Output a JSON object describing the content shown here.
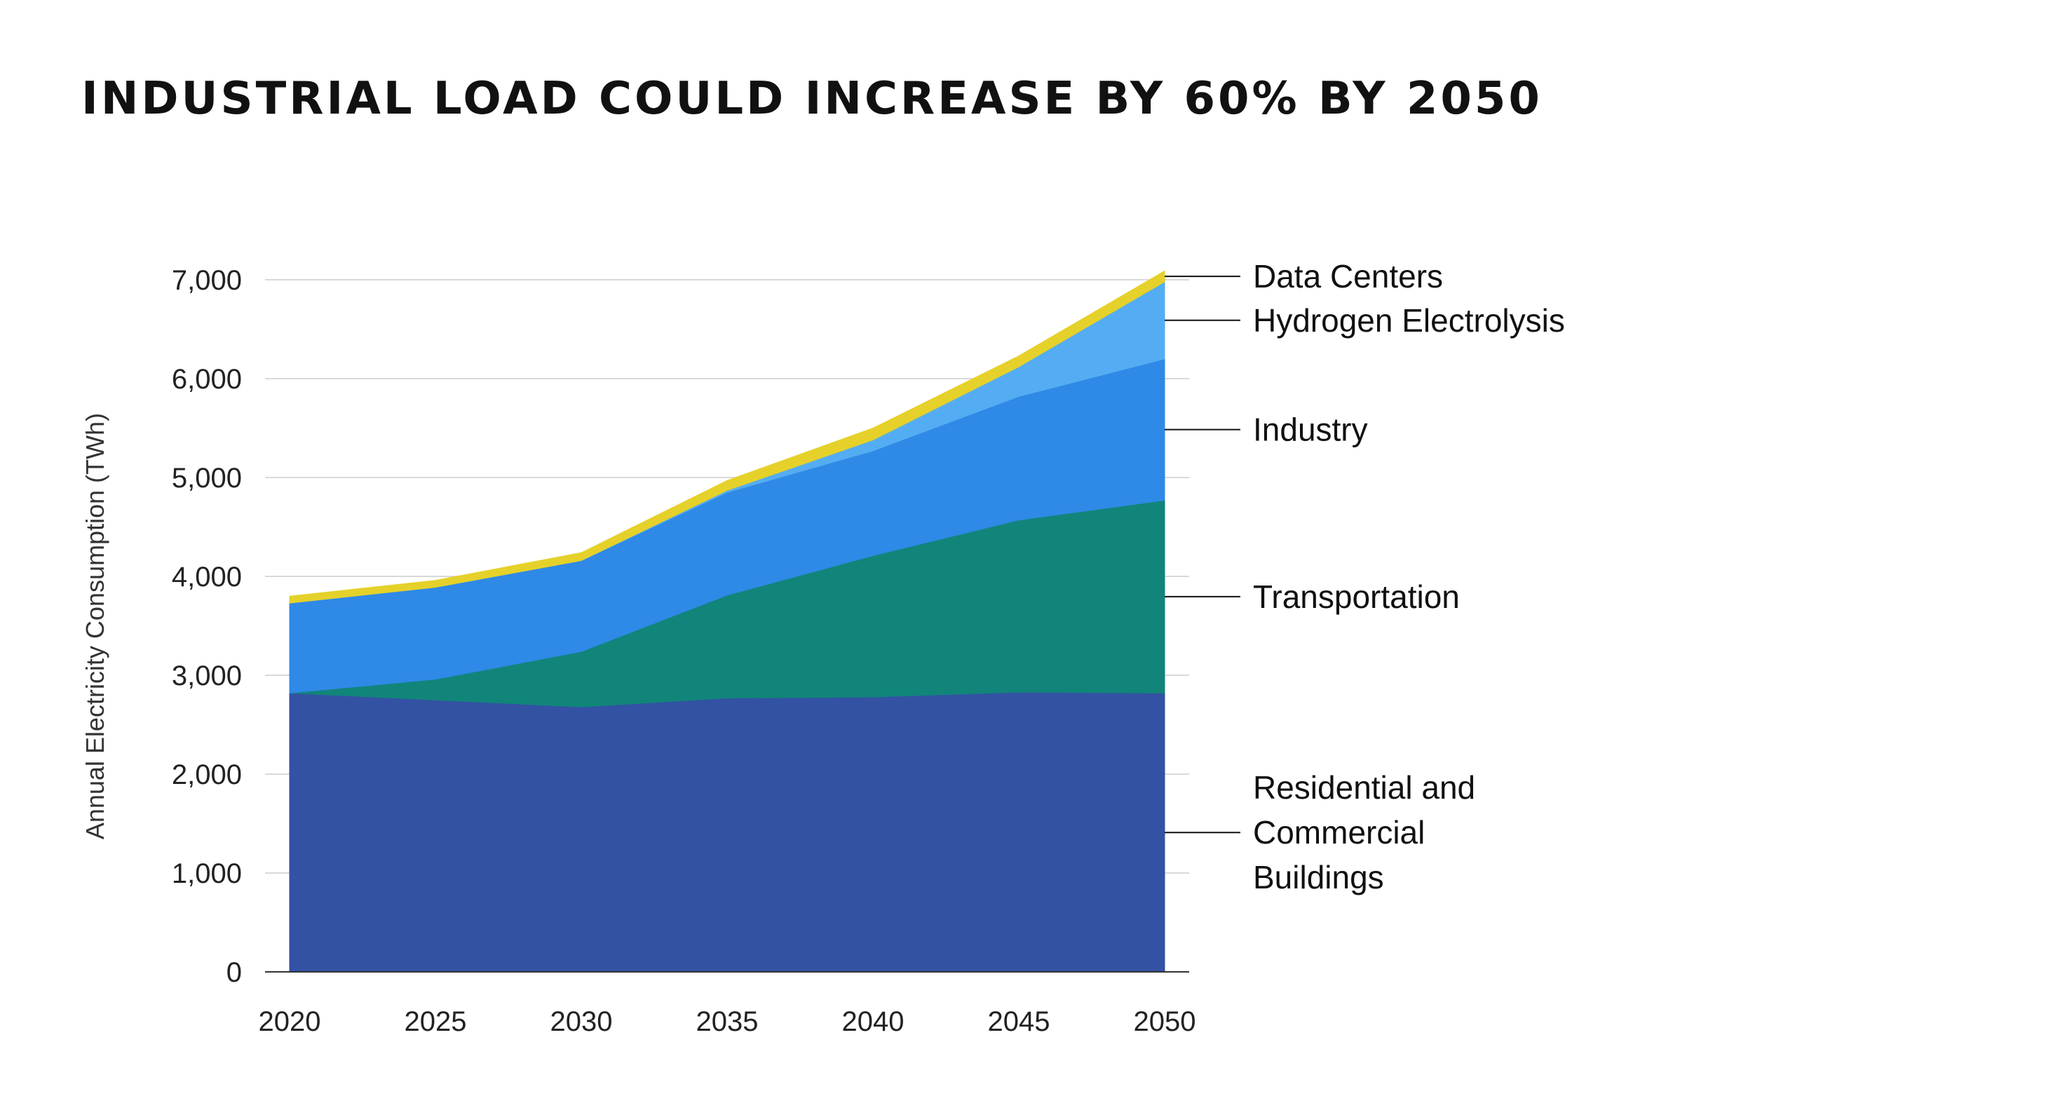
{
  "colors": {
    "residential_commercial": "#3352A3",
    "transportation": "#11857A",
    "industry": "#2F89E6",
    "hydrogen": "#54ADF2",
    "data_centers": "#E5D12A",
    "gridline": "#d9d9d9",
    "text": "#111111"
  },
  "chart_data": {
    "type": "area",
    "title": "INDUSTRIAL LOAD COULD INCREASE BY 60% BY 2050",
    "xlabel": "",
    "ylabel": "Annual Electricity Consumption (TWh)",
    "stacked": true,
    "grid": true,
    "legend": "direct labels on right",
    "x": [
      2020,
      2025,
      2030,
      2035,
      2040,
      2045,
      2050
    ],
    "ylim": [
      0,
      7000
    ],
    "yticks": [
      "0",
      "1,000",
      "2,000",
      "3,000",
      "4,000",
      "5,000",
      "6,000",
      "7,000"
    ],
    "xticks": [
      "2020",
      "2025",
      "2030",
      "2035",
      "2040",
      "2045",
      "2050"
    ],
    "series": [
      {
        "name": "Residential and Commercial Buildings",
        "label_lines": [
          "Residential and",
          "Commercial",
          "Buildings"
        ],
        "color": "#3352A3",
        "values": [
          2820,
          2750,
          2680,
          2770,
          2780,
          2830,
          2820
        ]
      },
      {
        "name": "Transportation",
        "label_lines": [
          "Transportation"
        ],
        "color": "#11857A",
        "values": [
          0,
          210,
          560,
          1040,
          1430,
          1740,
          1950
        ]
      },
      {
        "name": "Industry",
        "label_lines": [
          "Industry"
        ],
        "color": "#2F89E6",
        "values": [
          910,
          930,
          920,
          1040,
          1060,
          1250,
          1430
        ]
      },
      {
        "name": "Hydrogen Electrolysis",
        "label_lines": [
          "Hydrogen Electrolysis"
        ],
        "color": "#54ADF2",
        "values": [
          0,
          0,
          0,
          20,
          110,
          300,
          780
        ]
      },
      {
        "name": "Data Centers",
        "label_lines": [
          "Data Centers"
        ],
        "color": "#E5D12A",
        "values": [
          70,
          70,
          80,
          100,
          120,
          110,
          110
        ]
      }
    ]
  }
}
